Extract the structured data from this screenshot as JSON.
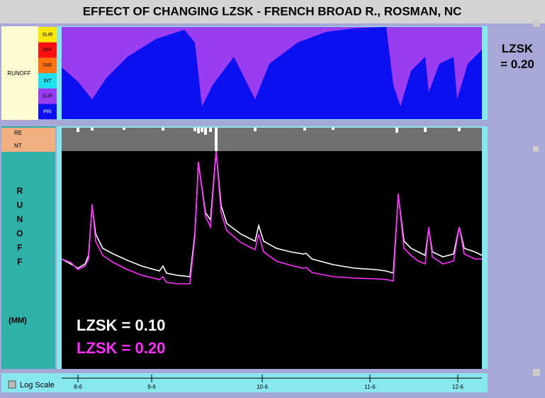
{
  "window_title": "EFFECT OF CHANGING LZSK - FRENCH BROAD R., ROSMAN, NC",
  "top_panel": {
    "label": "RUNOFF",
    "legend": [
      {
        "name": "SUR",
        "color": "#ffe800"
      },
      {
        "name": "IMP",
        "color": "#ff1010"
      },
      {
        "name": "DIR",
        "color": "#ff7010"
      },
      {
        "name": "INT",
        "color": "#20e0f0"
      },
      {
        "name": "SUP",
        "color": "#9a3cf2"
      },
      {
        "name": "PRI",
        "color": "#0a10ee"
      }
    ],
    "side_label": "LZSK\n= 0.20",
    "x": [
      0,
      23,
      43,
      63,
      93,
      133,
      173,
      188,
      198,
      213,
      243,
      273,
      293,
      333,
      373,
      413,
      458,
      468,
      478,
      493,
      513,
      518,
      533,
      553,
      558,
      573,
      593
    ],
    "values": [
      73,
      53,
      28,
      58,
      88,
      113,
      126,
      108,
      18,
      48,
      88,
      28,
      78,
      108,
      123,
      128,
      130,
      48,
      18,
      68,
      88,
      38,
      78,
      88,
      28,
      78,
      98
    ],
    "xlim": [
      0,
      593
    ],
    "ylim": [
      0,
      130
    ]
  },
  "chart_data": {
    "type": "line",
    "y_label": "RUNOFF",
    "unit_label": "(MM)",
    "precip_labels": [
      "RE",
      "NT"
    ],
    "x": [
      0,
      13,
      23,
      33,
      38,
      43,
      48,
      58,
      73,
      93,
      113,
      138,
      143,
      148,
      163,
      181,
      188,
      193,
      203,
      210,
      218,
      225,
      233,
      253,
      273,
      278,
      285,
      303,
      323,
      341,
      345,
      353,
      383,
      413,
      443,
      458,
      468,
      475,
      483,
      493,
      503,
      513,
      518,
      523,
      538,
      553,
      561,
      568,
      583,
      593
    ],
    "series": [
      {
        "name": "LZSK = 0.10",
        "color": "#ffffff",
        "values": [
          155,
          148,
          142,
          148,
          160,
          230,
          190,
          170,
          162,
          153,
          145,
          138,
          145,
          135,
          132,
          130,
          190,
          290,
          220,
          210,
          307,
          230,
          205,
          190,
          180,
          202,
          180,
          170,
          165,
          162,
          163,
          155,
          147,
          142,
          140,
          138,
          135,
          245,
          180,
          170,
          165,
          160,
          198,
          165,
          158,
          162,
          200,
          170,
          165,
          160
        ]
      },
      {
        "name": "LZSK = 0.20",
        "color": "#ff30ff",
        "values": [
          155,
          150,
          140,
          145,
          155,
          232,
          180,
          160,
          150,
          140,
          132,
          126,
          130,
          122,
          120,
          120,
          185,
          292,
          215,
          200,
          307,
          220,
          195,
          178,
          168,
          190,
          165,
          152,
          146,
          142,
          143,
          136,
          130,
          128,
          127,
          126,
          124,
          247,
          170,
          160,
          152,
          148,
          200,
          158,
          148,
          152,
          200,
          162,
          155,
          155
        ]
      }
    ],
    "xlim": [
      0,
      593
    ],
    "ylim": [
      0,
      340
    ],
    "xticks": [
      {
        "value": 23,
        "label": "8-6"
      },
      {
        "value": 127,
        "label": "9-6"
      },
      {
        "value": 283,
        "label": "10-6"
      },
      {
        "value": 435,
        "label": "11-6"
      },
      {
        "value": 559,
        "label": "12-6"
      }
    ],
    "precip": {
      "x": [
        23,
        43,
        88,
        143,
        188,
        193,
        198,
        203,
        210,
        218,
        273,
        343,
        383,
        473,
        513,
        561
      ],
      "values": [
        6,
        4,
        3,
        4,
        5,
        8,
        6,
        10,
        6,
        33,
        5,
        4,
        3,
        7,
        6,
        5
      ],
      "ylim": [
        0,
        33
      ]
    }
  },
  "log_scale_label": "Log Scale"
}
